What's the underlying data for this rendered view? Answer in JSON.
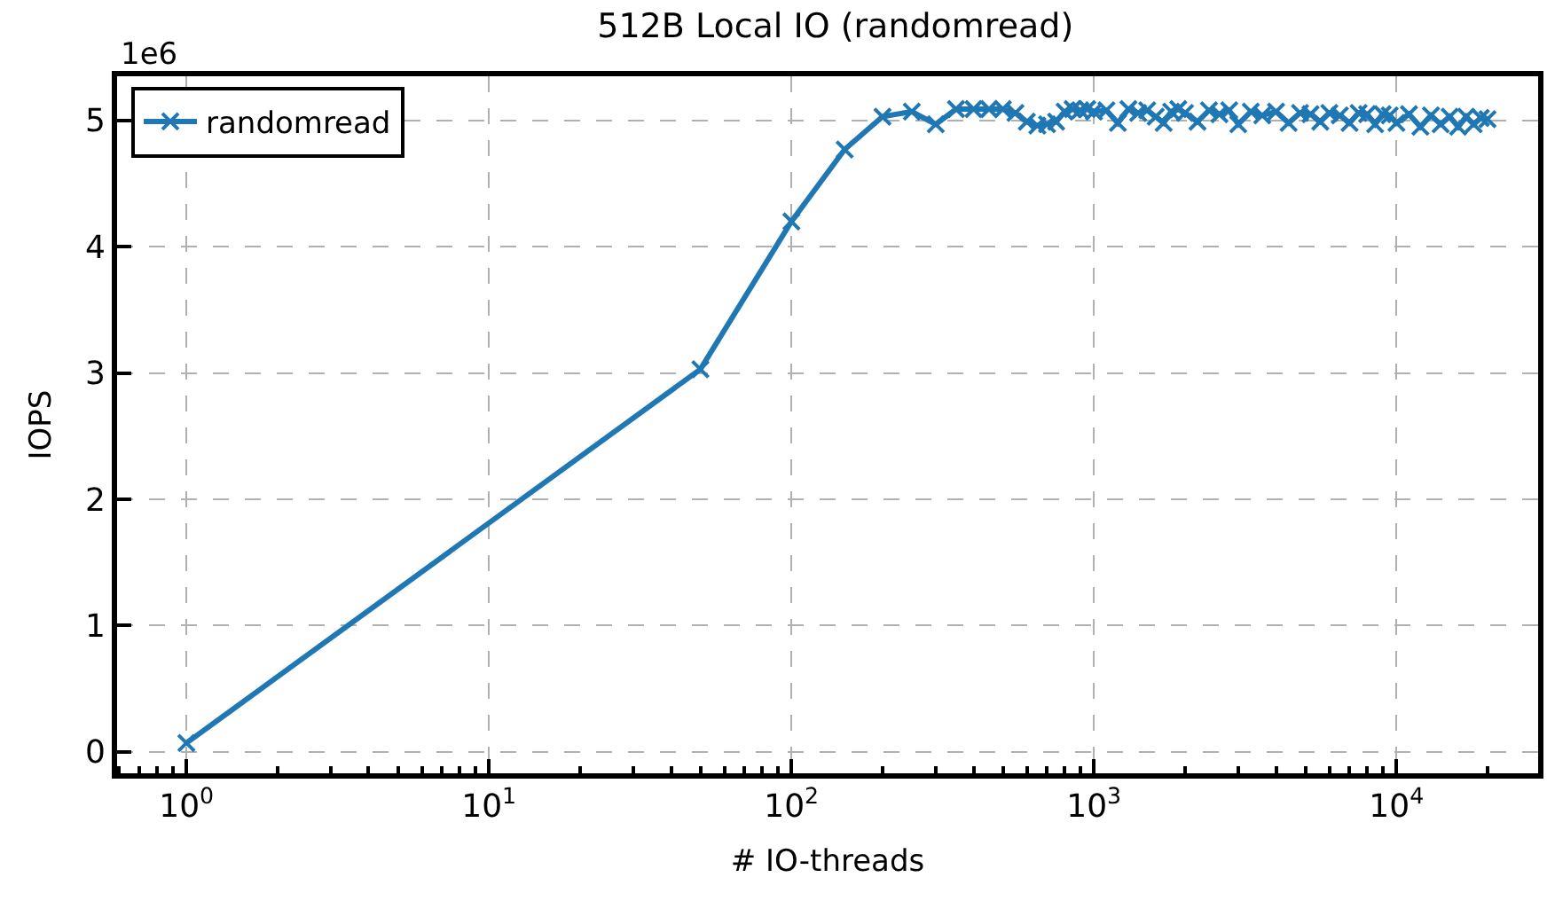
{
  "chart_data": {
    "type": "line",
    "title": "512B Local IO (randomread)",
    "xlabel": "# IO-threads",
    "ylabel": "IOPS",
    "annotations": [
      "1e6"
    ],
    "x": [
      1,
      50,
      100,
      150,
      200,
      250,
      300,
      350,
      400,
      450,
      500,
      550,
      600,
      650,
      700,
      750,
      800,
      850,
      900,
      950,
      1000,
      1100,
      1200,
      1300,
      1400,
      1500,
      1600,
      1700,
      1800,
      1900,
      2000,
      2200,
      2400,
      2600,
      2800,
      3000,
      3300,
      3600,
      4000,
      4400,
      4800,
      5200,
      5600,
      6000,
      6500,
      7000,
      7500,
      8000,
      8500,
      9000,
      9500,
      10000,
      11000,
      12000,
      13000,
      14000,
      15000,
      16000,
      17000,
      18000,
      19000,
      20000
    ],
    "series": [
      {
        "name": "randomread",
        "color": "#1f77b4",
        "values": [
          0.07,
          3.03,
          4.2,
          4.77,
          5.03,
          5.07,
          4.97,
          5.09,
          5.09,
          5.09,
          5.09,
          5.06,
          4.99,
          4.96,
          4.97,
          4.99,
          5.07,
          5.09,
          5.08,
          5.09,
          5.07,
          5.08,
          4.98,
          5.09,
          5.06,
          5.08,
          5.03,
          4.98,
          5.07,
          5.09,
          5.06,
          4.99,
          5.08,
          5.05,
          5.08,
          4.97,
          5.07,
          5.04,
          5.07,
          4.98,
          5.06,
          5.05,
          4.99,
          5.06,
          5.04,
          4.98,
          5.06,
          5.05,
          4.97,
          5.05,
          5.04,
          4.98,
          5.05,
          4.95,
          5.04,
          4.97,
          5.03,
          4.95,
          5.03,
          4.97,
          5.02,
          5.01
        ]
      }
    ],
    "log": "x",
    "xlim": [
      0.59,
      29400
    ],
    "ylim": [
      -0.17,
      5.35
    ],
    "xticks": [
      {
        "value": 1,
        "label": "10$^{0}$"
      },
      {
        "value": 10,
        "label": "10$^{1}$"
      },
      {
        "value": 100,
        "label": "10$^{2}$"
      },
      {
        "value": 1000,
        "label": "10$^{3}$"
      },
      {
        "value": 10000,
        "label": "10$^{4}$"
      }
    ],
    "yticks": [
      0,
      1,
      2,
      3,
      4,
      5
    ],
    "grid": true,
    "legend": "top left",
    "marker": "cross",
    "line_style": "solid"
  }
}
